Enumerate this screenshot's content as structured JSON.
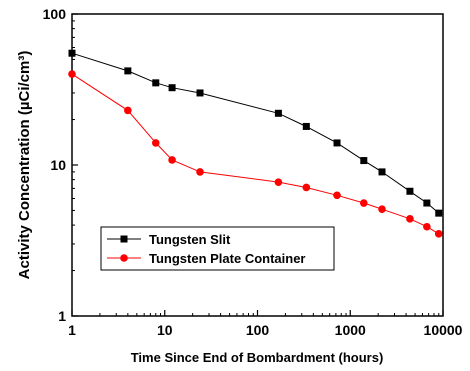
{
  "chart_data": {
    "type": "line",
    "xscale": "log",
    "yscale": "log",
    "xlim": [
      1,
      10000
    ],
    "ylim": [
      1,
      100
    ],
    "xlabel": "Time Since End of Bombardment (hours)",
    "ylabel": "Activity Concentration (µCi/cm³)",
    "x_ticks": [
      {
        "value": 1,
        "label": "1"
      },
      {
        "value": 10,
        "label": "10"
      },
      {
        "value": 100,
        "label": "100"
      },
      {
        "value": 1000,
        "label": "1000"
      },
      {
        "value": 10000,
        "label": "10000"
      }
    ],
    "y_ticks": [
      {
        "value": 1,
        "label": "1"
      },
      {
        "value": 10,
        "label": "10"
      },
      {
        "value": 100,
        "label": "100"
      }
    ],
    "grid": false,
    "legend": "lower-left",
    "series": [
      {
        "name": "Tungsten Slit",
        "color": "#000000",
        "marker": "square",
        "x": [
          1,
          4,
          8,
          12,
          24,
          168,
          336,
          720,
          1400,
          2200,
          4400,
          6700,
          9000
        ],
        "y": [
          55,
          42,
          35,
          32.5,
          30,
          22,
          18,
          14,
          10.7,
          9,
          6.7,
          5.6,
          4.8
        ]
      },
      {
        "name": "Tungsten Plate Container",
        "color": "#ff0000",
        "marker": "circle",
        "x": [
          1,
          4,
          8,
          12,
          24,
          168,
          336,
          720,
          1400,
          2200,
          4400,
          6700,
          9000
        ],
        "y": [
          40,
          23,
          14,
          10.8,
          9,
          7.7,
          7.1,
          6.3,
          5.6,
          5.1,
          4.4,
          3.9,
          3.5
        ]
      }
    ]
  }
}
